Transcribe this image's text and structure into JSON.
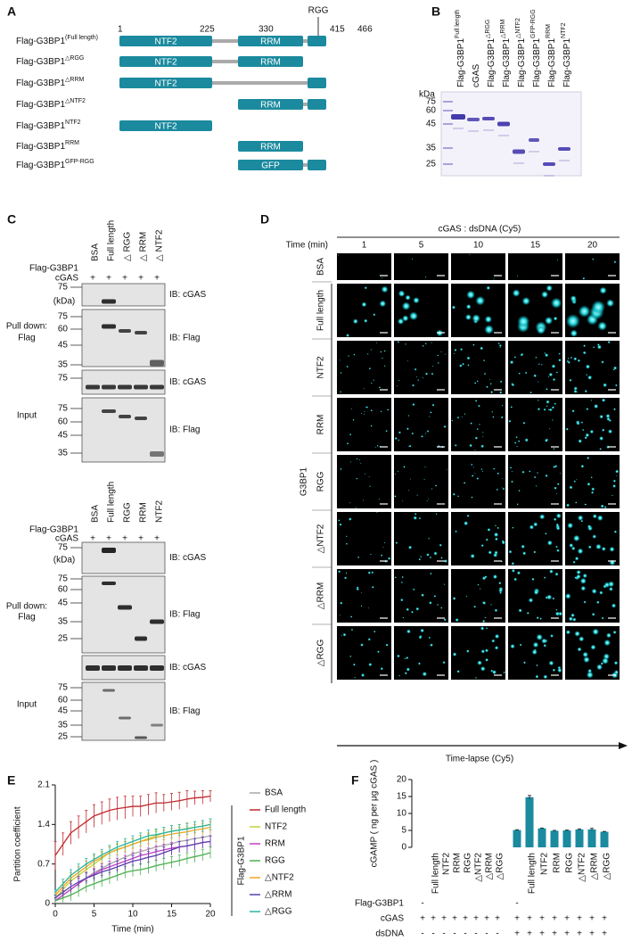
{
  "panel_labels": [
    "A",
    "B",
    "C",
    "D",
    "E",
    "F"
  ],
  "panel_a": {
    "positions": [
      1,
      225,
      330,
      415,
      466
    ],
    "motif": "RGG",
    "constructs": [
      {
        "name": "Flag-G3BP1",
        "sup": "(Full length)",
        "domains": [
          "NTF2",
          "RRM"
        ]
      },
      {
        "name": "Flag-G3BP1",
        "sup": "△RGG",
        "domains": [
          "NTF2",
          "RRM"
        ]
      },
      {
        "name": "Flag-G3BP1",
        "sup": "△RRM",
        "domains": [
          "NTF2"
        ]
      },
      {
        "name": "Flag-G3BP1",
        "sup": "△NTF2",
        "domains": [
          "RRM"
        ]
      },
      {
        "name": "Flag-G3BP1",
        "sup": "NTF2",
        "domains": [
          "NTF2"
        ]
      },
      {
        "name": "Flag-G3BP1",
        "sup": "RRM",
        "domains": [
          "RRM"
        ]
      },
      {
        "name": "Flag-G3BP1",
        "sup": "GFP-RGG",
        "domains": [
          "GFP"
        ]
      }
    ]
  },
  "panel_b": {
    "lanes": [
      {
        "name": "Flag-G3BP1",
        "sup": "Full length"
      },
      {
        "name": "cGAS"
      },
      {
        "name": "Flag-G3BP1",
        "sup": "△RGG"
      },
      {
        "name": "Flag-G3BP1",
        "sup": "△RRM"
      },
      {
        "name": "Flag-G3BP1",
        "sup": "△NTF2"
      },
      {
        "name": "Flag-G3BP1",
        "sup": "GFP-RGG"
      },
      {
        "name": "Flag-G3BP1",
        "sup": "RRM"
      },
      {
        "name": "Flag-G3BP1",
        "sup": "NTF2"
      }
    ],
    "unit": "kDa",
    "markers": [
      75,
      60,
      45,
      35,
      25
    ]
  },
  "panel_c": {
    "blots": [
      {
        "columns": [
          "BSA",
          "Full length",
          "△ RGG",
          "△ RRM",
          "△ NTF2"
        ],
        "row_labels": [
          "Flag-G3BP1",
          "cGAS"
        ],
        "cgas_marks": [
          "+",
          "+",
          "+",
          "+",
          "+"
        ],
        "unit": "(kDa)",
        "sections": [
          {
            "label": [
              "Pull down:",
              "Flag"
            ],
            "panels": [
              {
                "ib": "IB: cGAS",
                "markers": [
                  75
                ]
              },
              {
                "ib": "IB: Flag",
                "markers": [
                  75,
                  60,
                  45,
                  35
                ]
              }
            ]
          },
          {
            "label": [
              "Input"
            ],
            "panels": [
              {
                "ib": "IB: cGAS",
                "markers": [
                  75
                ]
              },
              {
                "ib": "IB: Flag",
                "markers": [
                  75,
                  60,
                  45,
                  35
                ]
              }
            ]
          }
        ]
      },
      {
        "columns": [
          "BSA",
          "Full length",
          "RGG",
          "RRM",
          "NTF2"
        ],
        "row_labels": [
          "Flag-G3BP1",
          "cGAS"
        ],
        "cgas_marks": [
          "+",
          "+",
          "+",
          "+",
          "+"
        ],
        "unit": "(kDa)",
        "sections": [
          {
            "label": [
              "Pull down:",
              "Flag"
            ],
            "panels": [
              {
                "ib": "IB: cGAS",
                "markers": [
                  75
                ]
              },
              {
                "ib": "IB: Flag",
                "markers": [
                  75,
                  60,
                  45,
                  35,
                  25
                ]
              }
            ]
          },
          {
            "label": [
              "Input"
            ],
            "panels": [
              {
                "ib": "IB: cGAS",
                "markers": []
              },
              {
                "ib": "IB: Flag",
                "markers": [
                  75,
                  60,
                  45,
                  35,
                  25
                ]
              }
            ]
          }
        ]
      }
    ]
  },
  "panel_d": {
    "title": "cGAS : dsDNA (Cy5)",
    "time_label": "Time (min)",
    "times": [
      1,
      5,
      10,
      15,
      20
    ],
    "rows": [
      "BSA",
      "Full length",
      "NTF2",
      "RRM",
      "RGG",
      "△NTF2",
      "△RRM",
      "△RGG"
    ],
    "group": "G3BP1",
    "axis_label": "Time-lapse (Cy5)"
  },
  "chart_data": [
    {
      "type": "line",
      "y_label": "Partition coefficient",
      "x_label": "Time (min)",
      "legend_title": "Flag-G3BP1",
      "x": [
        0,
        1,
        2,
        3,
        4,
        5,
        6,
        7,
        8,
        9,
        10,
        11,
        12,
        13,
        14,
        15,
        16,
        17,
        18,
        19,
        20
      ],
      "xlim": [
        0,
        20
      ],
      "xticks": [
        0,
        5,
        10,
        15,
        20
      ],
      "ylim": [
        0,
        2.1
      ],
      "yticks": [
        0,
        0.7,
        1.4,
        2.1
      ],
      "series": [
        {
          "name": "BSA",
          "color": "#a8a8a8",
          "values": [
            0.05,
            0.15,
            0.25,
            0.35,
            0.45,
            0.55,
            0.62,
            0.7,
            0.76,
            0.82,
            0.88,
            0.92,
            0.96,
            1.0,
            1.03,
            1.06,
            1.1,
            1.12,
            1.15,
            1.17,
            1.2
          ],
          "errors": [
            0.05,
            0.08,
            0.1,
            0.1,
            0.1,
            0.1,
            0.1,
            0.1,
            0.1,
            0.1,
            0.1,
            0.1,
            0.1,
            0.1,
            0.1,
            0.1,
            0.1,
            0.1,
            0.1,
            0.1,
            0.1
          ]
        },
        {
          "name": "Full length",
          "color": "#c0282d",
          "values": [
            0.85,
            1.05,
            1.25,
            1.35,
            1.45,
            1.55,
            1.6,
            1.65,
            1.68,
            1.7,
            1.72,
            1.72,
            1.75,
            1.78,
            1.78,
            1.8,
            1.82,
            1.85,
            1.87,
            1.88,
            1.9
          ],
          "errors": [
            0.25,
            0.2,
            0.2,
            0.2,
            0.2,
            0.2,
            0.2,
            0.2,
            0.2,
            0.2,
            0.18,
            0.18,
            0.18,
            0.18,
            0.15,
            0.15,
            0.15,
            0.15,
            0.12,
            0.12,
            0.1
          ]
        },
        {
          "name": "NTF2",
          "color": "#c5d13a",
          "values": [
            0.1,
            0.25,
            0.4,
            0.5,
            0.6,
            0.7,
            0.8,
            0.9,
            0.95,
            1.0,
            1.05,
            1.1,
            1.15,
            1.2,
            1.25,
            1.28,
            1.3,
            1.33,
            1.35,
            1.37,
            1.4
          ],
          "errors": [
            0.05,
            0.08,
            0.1,
            0.1,
            0.1,
            0.1,
            0.1,
            0.1,
            0.1,
            0.1,
            0.1,
            0.1,
            0.1,
            0.1,
            0.1,
            0.1,
            0.1,
            0.1,
            0.1,
            0.1,
            0.1
          ]
        },
        {
          "name": "RRM",
          "color": "#c03fc8",
          "values": [
            0.05,
            0.15,
            0.25,
            0.35,
            0.45,
            0.52,
            0.6,
            0.65,
            0.7,
            0.75,
            0.8,
            0.85,
            0.88,
            0.92,
            0.95,
            0.98,
            1.0,
            1.02,
            1.05,
            1.08,
            1.1
          ],
          "errors": [
            0.05,
            0.08,
            0.1,
            0.1,
            0.1,
            0.1,
            0.1,
            0.1,
            0.1,
            0.1,
            0.1,
            0.1,
            0.1,
            0.1,
            0.1,
            0.1,
            0.1,
            0.1,
            0.1,
            0.1,
            0.1
          ]
        },
        {
          "name": "RGG",
          "color": "#4caf50",
          "values": [
            0.05,
            0.1,
            0.15,
            0.22,
            0.3,
            0.35,
            0.4,
            0.45,
            0.5,
            0.55,
            0.58,
            0.6,
            0.63,
            0.67,
            0.7,
            0.73,
            0.76,
            0.8,
            0.83,
            0.86,
            0.9
          ],
          "errors": [
            0.05,
            0.08,
            0.1,
            0.1,
            0.1,
            0.1,
            0.1,
            0.1,
            0.1,
            0.1,
            0.1,
            0.1,
            0.1,
            0.1,
            0.1,
            0.1,
            0.1,
            0.1,
            0.1,
            0.1,
            0.1
          ]
        },
        {
          "name": "△NTF2",
          "color": "#f5a623",
          "values": [
            0.15,
            0.3,
            0.45,
            0.55,
            0.65,
            0.75,
            0.82,
            0.9,
            0.96,
            1.0,
            1.05,
            1.1,
            1.13,
            1.17,
            1.2,
            1.23,
            1.25,
            1.27,
            1.3,
            1.32,
            1.35
          ],
          "errors": [
            0.05,
            0.08,
            0.1,
            0.1,
            0.1,
            0.1,
            0.1,
            0.1,
            0.1,
            0.1,
            0.1,
            0.1,
            0.1,
            0.1,
            0.1,
            0.1,
            0.1,
            0.1,
            0.1,
            0.1,
            0.1
          ]
        },
        {
          "name": "△RRM",
          "color": "#5b3fa8",
          "values": [
            0.1,
            0.2,
            0.3,
            0.38,
            0.45,
            0.5,
            0.56,
            0.6,
            0.65,
            0.7,
            0.75,
            0.78,
            0.82,
            0.85,
            0.9,
            0.95,
            1.0,
            1.02,
            1.05,
            1.08,
            1.1
          ],
          "errors": [
            0.05,
            0.08,
            0.1,
            0.1,
            0.1,
            0.1,
            0.1,
            0.1,
            0.1,
            0.1,
            0.1,
            0.1,
            0.1,
            0.1,
            0.1,
            0.1,
            0.1,
            0.1,
            0.1,
            0.1,
            0.1
          ]
        },
        {
          "name": "△RGG",
          "color": "#2ab3a0",
          "values": [
            0.2,
            0.35,
            0.5,
            0.6,
            0.7,
            0.78,
            0.86,
            0.93,
            1.0,
            1.05,
            1.1,
            1.15,
            1.2,
            1.22,
            1.25,
            1.28,
            1.3,
            1.32,
            1.35,
            1.37,
            1.4
          ],
          "errors": [
            0.05,
            0.08,
            0.1,
            0.1,
            0.1,
            0.1,
            0.1,
            0.1,
            0.1,
            0.1,
            0.1,
            0.1,
            0.1,
            0.1,
            0.1,
            0.1,
            0.1,
            0.1,
            0.1,
            0.1,
            0.1
          ]
        }
      ]
    },
    {
      "type": "bar",
      "y_label": "cGAMP ( ng per μg cGAS )",
      "ylim": [
        0,
        20
      ],
      "yticks": [
        0,
        5,
        10,
        15,
        20
      ],
      "color": "#1a8a9e",
      "category_row_label": "Flag-G3BP1",
      "categories": [
        "-",
        "Full length",
        "NTF2",
        "RRM",
        "RGG",
        "△NTF2",
        "△RRM",
        "△RGG",
        "-",
        "Full length",
        "NTF2",
        "RRM",
        "RGG",
        "△NTF2",
        "△RRM",
        "△RGG"
      ],
      "values": [
        0,
        0,
        0,
        0,
        0,
        0,
        0,
        0,
        5.1,
        14.8,
        5.6,
        4.9,
        5.0,
        5.3,
        5.3,
        4.6
      ],
      "errors": [
        null,
        null,
        null,
        null,
        null,
        null,
        null,
        null,
        0.1,
        0.5,
        0.1,
        0.1,
        0.1,
        0.15,
        0.3,
        0.1
      ],
      "rows": [
        {
          "label": "cGAS",
          "marks": [
            "+",
            "+",
            "+",
            "+",
            "+",
            "+",
            "+",
            "+",
            "+",
            "+",
            "+",
            "+",
            "+",
            "+",
            "+",
            "+"
          ]
        },
        {
          "label": "dsDNA",
          "marks": [
            "-",
            "-",
            "-",
            "-",
            "-",
            "-",
            "-",
            "-",
            "+",
            "+",
            "+",
            "+",
            "+",
            "+",
            "+",
            "+"
          ]
        }
      ]
    }
  ]
}
